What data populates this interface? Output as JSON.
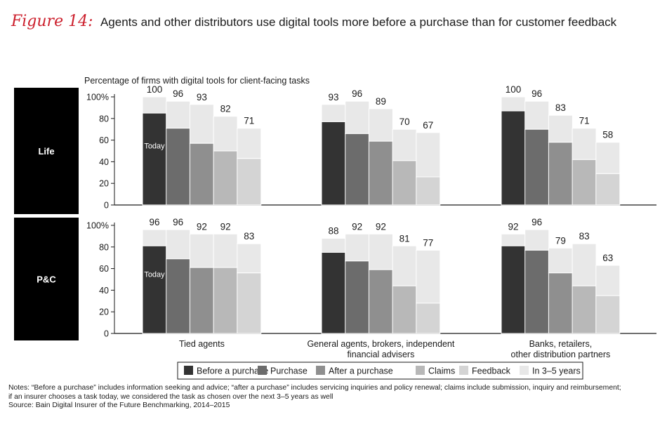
{
  "header": {
    "figure_label": "Figure 14:",
    "title": "Agents and other distributors use digital tools more before a purchase than for customer feedback"
  },
  "chart_data": {
    "type": "bar",
    "subtitle": "Percentage of firms with digital tools for client-facing tasks",
    "today_label": "Today",
    "y_ticks": [
      "100%",
      "80",
      "60",
      "40",
      "20",
      "0"
    ],
    "ylim": [
      0,
      100
    ],
    "groups": [
      "Tied agents",
      "General agents, brokers, independent financial advisers",
      "Banks, retailers, other distribution partners"
    ],
    "group_label_lines": [
      [
        "Tied agents"
      ],
      [
        "General agents, brokers, independent",
        "financial advisers"
      ],
      [
        "Banks, retailers,",
        "other distribution partners"
      ]
    ],
    "categories": [
      "Before a purchase",
      "Purchase",
      "After a purchase",
      "Claims",
      "Feedback"
    ],
    "future_label": "In 3–5 years",
    "colors": {
      "before": "#333333",
      "purchase": "#6c6c6c",
      "after": "#8f8f8f",
      "claims": "#b8b8b8",
      "feedback": "#d4d4d4",
      "future": "#e8e8e8",
      "panel": "#000000",
      "accent": "#cc1f2c"
    },
    "panels": [
      {
        "label": "Life",
        "groups": [
          {
            "today": [
              85,
              71,
              57,
              50,
              43
            ],
            "total": [
              100,
              96,
              93,
              82,
              71
            ]
          },
          {
            "today": [
              77,
              66,
              59,
              41,
              26
            ],
            "total": [
              93,
              96,
              89,
              70,
              67
            ]
          },
          {
            "today": [
              87,
              70,
              58,
              42,
              29
            ],
            "total": [
              100,
              96,
              83,
              71,
              58
            ]
          }
        ]
      },
      {
        "label": "P&C",
        "groups": [
          {
            "today": [
              81,
              69,
              61,
              61,
              56
            ],
            "total": [
              96,
              96,
              92,
              92,
              83
            ]
          },
          {
            "today": [
              75,
              67,
              59,
              44,
              28
            ],
            "total": [
              88,
              92,
              92,
              81,
              77
            ]
          },
          {
            "today": [
              81,
              77,
              56,
              44,
              35
            ],
            "total": [
              92,
              96,
              79,
              83,
              63
            ]
          }
        ]
      }
    ]
  },
  "notes": {
    "line1": "Notes: “Before a purchase” includes information seeking and advice; “after a purchase” includes servicing inquiries and policy renewal; claims include submission, inquiry and reimbursement;",
    "line2": "if an insurer chooses a task today, we considered the task as chosen over the next 3–5 years as well",
    "source": "Source: Bain Digital Insurer of the Future Benchmarking, 2014–2015"
  }
}
